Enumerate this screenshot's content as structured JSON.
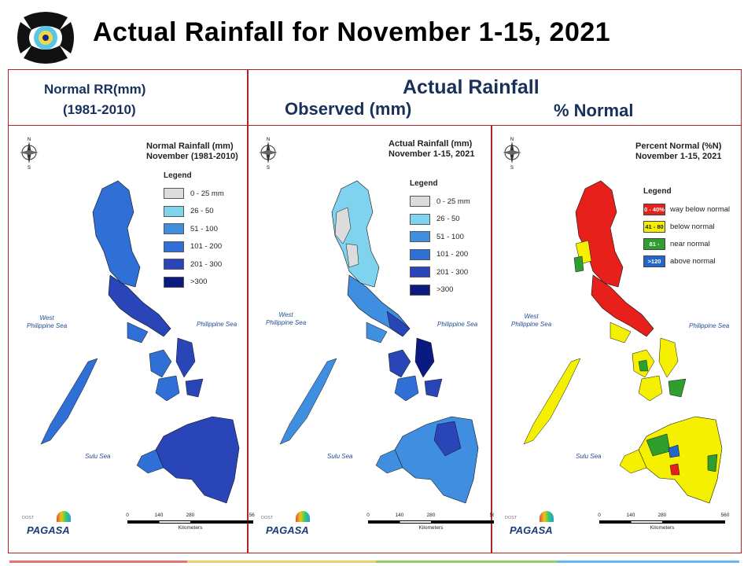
{
  "page": {
    "title": "Actual Rainfall for November 1-15, 2021"
  },
  "headers": {
    "normal_line1": "Normal RR(mm)",
    "normal_line2": "(1981-2010)",
    "actual": "Actual Rainfall",
    "observed": "Observed (mm)",
    "percent": "% Normal"
  },
  "maps": [
    {
      "title_line1": "Normal Rainfall (mm)",
      "title_line2": "November (1981-2010)",
      "legend_title": "Legend",
      "legend": [
        "0 - 25 mm",
        "26 - 50",
        "51 - 100",
        "101 - 200",
        "201 - 300",
        ">300"
      ]
    },
    {
      "title_line1": "Actual Rainfall (mm)",
      "title_line2": "November 1-15, 2021",
      "legend_title": "Legend",
      "legend": [
        "0 - 25 mm",
        "26 - 50",
        "51 - 100",
        "101 - 200",
        "201 - 300",
        ">300"
      ]
    },
    {
      "title_line1": "Percent Normal (%N)",
      "title_line2": "November 1-15, 2021",
      "legend_title": "Legend",
      "legend": [
        {
          "code": "0 - 40%",
          "label": "way below normal",
          "color": "#e8201c"
        },
        {
          "code": "41 - 80",
          "label": "below normal",
          "color": "#f5f000"
        },
        {
          "code": "81 - 120",
          "label": "near normal",
          "color": "#2e9e2e"
        },
        {
          "code": ">120",
          "label": "above normal",
          "color": "#2266cc"
        }
      ]
    }
  ],
  "rain_colors": [
    "#dcdcdc",
    "#7fd3ef",
    "#3f8ee0",
    "#2f6fd6",
    "#2a45b8",
    "#0b1a80"
  ],
  "sea_labels": {
    "west_line1": "West",
    "west_line2": "Philippine Sea",
    "philippine_sea": "Philippine Sea",
    "sulu_sea": "Sulu Sea"
  },
  "compass": {
    "n": "N",
    "s": "S"
  },
  "scale": {
    "ticks": [
      "0",
      "140",
      "280",
      "560"
    ],
    "unit": "Kilometers"
  },
  "branding": {
    "pagasa": "PAGASA",
    "pagasa_top": "DOST"
  }
}
